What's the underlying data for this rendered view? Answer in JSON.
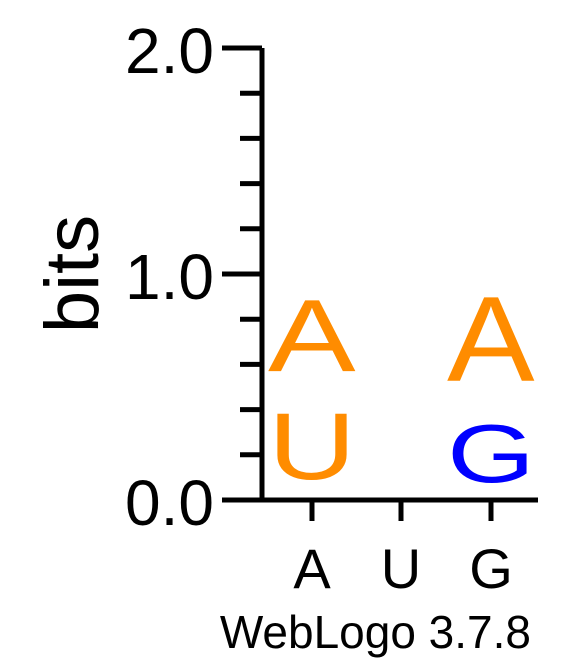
{
  "chart_data": {
    "type": "sequence-logo",
    "ylabel": "bits",
    "ylim": [
      0,
      2.0
    ],
    "y_ticks": [
      "0.0",
      "1.0",
      "2.0"
    ],
    "positions": [
      {
        "label": "A",
        "letters": [
          {
            "letter": "U",
            "height": 0.47,
            "color": "#ff8c00"
          },
          {
            "letter": "A",
            "height": 0.51,
            "color": "#ff8c00"
          }
        ]
      },
      {
        "label": "U",
        "letters": []
      },
      {
        "label": "G",
        "letters": [
          {
            "letter": "G",
            "height": 0.41,
            "color": "#0000ff"
          },
          {
            "letter": "A",
            "height": 0.6,
            "color": "#ff8c00"
          }
        ]
      }
    ],
    "footer": "WebLogo 3.7.8"
  }
}
